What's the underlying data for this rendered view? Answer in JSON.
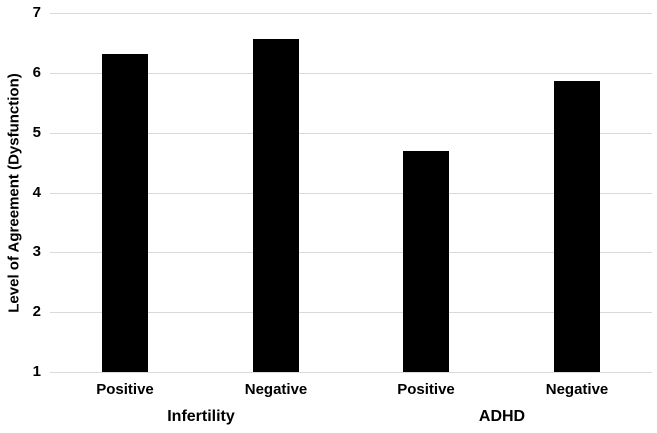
{
  "chart_data": {
    "type": "bar",
    "title": "",
    "xlabel": "",
    "ylabel": "Level of Agreement (Dysfunction)",
    "ylim": [
      1,
      7
    ],
    "yticks": [
      "1",
      "2",
      "3",
      "4",
      "5",
      "6",
      "7"
    ],
    "grid": true,
    "legend": false,
    "bar_color": "#000000",
    "gridline_color": "#d9d9d9",
    "label_color": "#000000",
    "categories": [
      "Positive",
      "Negative",
      "Positive",
      "Negative"
    ],
    "values": [
      6.32,
      6.57,
      4.69,
      5.87
    ],
    "groups": [
      {
        "label": "Infertility",
        "series": [
          {
            "category": "Positive",
            "value": 6.32
          },
          {
            "category": "Negative",
            "value": 6.57
          }
        ]
      },
      {
        "label": "ADHD",
        "series": [
          {
            "category": "Positive",
            "value": 4.69
          },
          {
            "category": "Negative",
            "value": 5.87
          }
        ]
      }
    ]
  }
}
